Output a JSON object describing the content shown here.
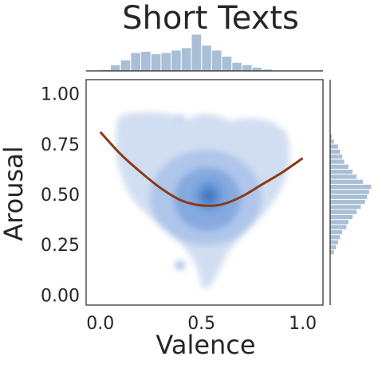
{
  "chart_data": {
    "type": "scatter",
    "title": "Short Texts",
    "xlabel": "Valence",
    "ylabel": "Arousal",
    "xlim": [
      -0.07,
      1.1
    ],
    "ylim": [
      -0.05,
      1.07
    ],
    "xticks": [
      "0.0",
      "0.5",
      "1.0"
    ],
    "yticks": [
      "0.00",
      "0.25",
      "0.50",
      "0.75",
      "1.00"
    ],
    "density": "kde-blue",
    "fit_curve": {
      "color": "#8B3A16",
      "points": [
        [
          0.0,
          0.81
        ],
        [
          0.1,
          0.7
        ],
        [
          0.2,
          0.61
        ],
        [
          0.3,
          0.53
        ],
        [
          0.4,
          0.47
        ],
        [
          0.5,
          0.445
        ],
        [
          0.6,
          0.45
        ],
        [
          0.7,
          0.49
        ],
        [
          0.8,
          0.55
        ],
        [
          0.9,
          0.61
        ],
        [
          1.0,
          0.68
        ]
      ]
    },
    "marginal_x": {
      "bin_width": 0.05,
      "bins_start": 0.0,
      "counts": [
        2,
        10,
        18,
        30,
        32,
        28,
        30,
        34,
        38,
        60,
        42,
        34,
        24,
        14,
        10,
        6,
        3
      ]
    },
    "marginal_y": {
      "bin_width": 0.025,
      "bins_start": 0.0,
      "counts": [
        0,
        0,
        0,
        0,
        0,
        0,
        0,
        0,
        4,
        6,
        8,
        10,
        12,
        16,
        18,
        22,
        26,
        30,
        34,
        36,
        38,
        40,
        32,
        26,
        22,
        18,
        14,
        12,
        10,
        8,
        4,
        2,
        0,
        0,
        0,
        0,
        0,
        0,
        0,
        0
      ]
    },
    "grid": false,
    "legend": "none"
  }
}
